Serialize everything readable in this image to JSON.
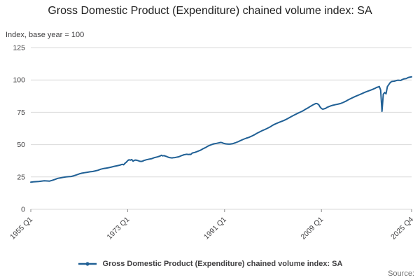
{
  "source_label": "Source:",
  "colors": {
    "line": "#206095",
    "grid": "#d9d9d9",
    "tick_text": "#414042",
    "tick_mark": "#8a8a8a",
    "title_text": "#202020",
    "source_text": "#707070"
  },
  "chart_data": {
    "type": "line",
    "title": "Gross Domestic Product (Expenditure) chained volume index: SA",
    "ylabel": "Index, base year = 100",
    "xlabel": "",
    "xlim": [
      1955,
      2025.75
    ],
    "ylim": [
      0,
      125
    ],
    "grid": "horizontal-light",
    "legend_position": "bottom-center",
    "y_ticks": [
      0,
      25,
      50,
      75,
      100,
      125
    ],
    "x_ticks": [
      {
        "label": "1955 Q1",
        "t": 1955.0
      },
      {
        "label": "1973 Q1",
        "t": 1973.0
      },
      {
        "label": "1991 Q1",
        "t": 1991.0
      },
      {
        "label": "2009 Q1",
        "t": 2009.0
      },
      {
        "label": "2025 Q4",
        "t": 2025.75
      }
    ],
    "series": [
      {
        "name": "Gross Domestic Product (Expenditure) chained volume index: SA",
        "points": [
          [
            1955,
            21
          ],
          [
            1955.5,
            21.2
          ],
          [
            1956,
            21.4
          ],
          [
            1956.5,
            21.5
          ],
          [
            1957,
            21.8
          ],
          [
            1957.5,
            22
          ],
          [
            1958,
            21.9
          ],
          [
            1958.5,
            21.8
          ],
          [
            1959,
            22.4
          ],
          [
            1959.5,
            23.1
          ],
          [
            1960,
            23.9
          ],
          [
            1960.5,
            24.3
          ],
          [
            1961,
            24.7
          ],
          [
            1961.5,
            25
          ],
          [
            1962,
            25.2
          ],
          [
            1962.5,
            25.4
          ],
          [
            1963,
            25.9
          ],
          [
            1963.5,
            26.6
          ],
          [
            1964,
            27.4
          ],
          [
            1964.5,
            27.9
          ],
          [
            1965,
            28.3
          ],
          [
            1965.5,
            28.6
          ],
          [
            1966,
            29
          ],
          [
            1966.5,
            29.2
          ],
          [
            1967,
            29.7
          ],
          [
            1967.5,
            30.2
          ],
          [
            1968,
            31
          ],
          [
            1968.5,
            31.5
          ],
          [
            1969,
            31.8
          ],
          [
            1969.5,
            32.2
          ],
          [
            1970,
            32.7
          ],
          [
            1970.5,
            33.2
          ],
          [
            1971,
            33.6
          ],
          [
            1971.5,
            34.1
          ],
          [
            1972,
            34.8
          ],
          [
            1972.25,
            34.4
          ],
          [
            1972.5,
            35.6
          ],
          [
            1972.75,
            36.4
          ],
          [
            1973,
            37.6
          ],
          [
            1973.25,
            38.3
          ],
          [
            1973.5,
            38
          ],
          [
            1973.75,
            38.5
          ],
          [
            1974,
            37.2
          ],
          [
            1974.25,
            37.9
          ],
          [
            1974.5,
            38.1
          ],
          [
            1974.75,
            37.8
          ],
          [
            1975,
            37.5
          ],
          [
            1975.25,
            37.1
          ],
          [
            1975.5,
            37
          ],
          [
            1975.75,
            37.2
          ],
          [
            1976,
            37.7
          ],
          [
            1976.5,
            38.3
          ],
          [
            1977,
            38.8
          ],
          [
            1977.5,
            39.2
          ],
          [
            1978,
            40
          ],
          [
            1978.5,
            40.5
          ],
          [
            1979,
            41.1
          ],
          [
            1979.25,
            41.8
          ],
          [
            1979.5,
            41.3
          ],
          [
            1979.75,
            41.5
          ],
          [
            1980,
            41.1
          ],
          [
            1980.25,
            40.8
          ],
          [
            1980.5,
            40.3
          ],
          [
            1980.75,
            40
          ],
          [
            1981,
            39.8
          ],
          [
            1981.25,
            39.7
          ],
          [
            1981.5,
            39.9
          ],
          [
            1981.75,
            40
          ],
          [
            1982,
            40.2
          ],
          [
            1982.5,
            40.6
          ],
          [
            1983,
            41.5
          ],
          [
            1983.5,
            42.2
          ],
          [
            1984,
            42.6
          ],
          [
            1984.25,
            42.3
          ],
          [
            1984.5,
            42.5
          ],
          [
            1984.75,
            42.4
          ],
          [
            1985,
            43.5
          ],
          [
            1985.5,
            44
          ],
          [
            1986,
            44.8
          ],
          [
            1986.5,
            45.6
          ],
          [
            1987,
            46.8
          ],
          [
            1987.5,
            47.8
          ],
          [
            1988,
            49
          ],
          [
            1988.5,
            49.9
          ],
          [
            1989,
            50.6
          ],
          [
            1989.5,
            51
          ],
          [
            1990,
            51.4
          ],
          [
            1990.25,
            51.7
          ],
          [
            1990.5,
            51.5
          ],
          [
            1990.75,
            51.1
          ],
          [
            1991,
            50.8
          ],
          [
            1991.25,
            50.6
          ],
          [
            1991.5,
            50.5
          ],
          [
            1991.75,
            50.4
          ],
          [
            1992,
            50.4
          ],
          [
            1992.5,
            50.7
          ],
          [
            1993,
            51.4
          ],
          [
            1993.5,
            52.2
          ],
          [
            1994,
            53.2
          ],
          [
            1994.5,
            54.1
          ],
          [
            1995,
            54.9
          ],
          [
            1995.5,
            55.6
          ],
          [
            1996,
            56.5
          ],
          [
            1996.5,
            57.5
          ],
          [
            1997,
            58.7
          ],
          [
            1997.5,
            59.8
          ],
          [
            1998,
            60.8
          ],
          [
            1998.5,
            61.7
          ],
          [
            1999,
            62.7
          ],
          [
            1999.5,
            63.8
          ],
          [
            2000,
            65.1
          ],
          [
            2000.5,
            66.1
          ],
          [
            2001,
            67
          ],
          [
            2001.5,
            67.8
          ],
          [
            2002,
            68.6
          ],
          [
            2002.5,
            69.6
          ],
          [
            2003,
            70.7
          ],
          [
            2003.5,
            71.9
          ],
          [
            2004,
            73
          ],
          [
            2004.5,
            74
          ],
          [
            2005,
            75
          ],
          [
            2005.5,
            76
          ],
          [
            2006,
            77.2
          ],
          [
            2006.5,
            78.4
          ],
          [
            2007,
            79.7
          ],
          [
            2007.5,
            80.9
          ],
          [
            2007.75,
            81.4
          ],
          [
            2008,
            81.8
          ],
          [
            2008.25,
            81.6
          ],
          [
            2008.5,
            80.8
          ],
          [
            2008.75,
            79.1
          ],
          [
            2009,
            77.9
          ],
          [
            2009.25,
            77.4
          ],
          [
            2009.5,
            77.7
          ],
          [
            2009.75,
            78
          ],
          [
            2010,
            78.7
          ],
          [
            2010.5,
            79.6
          ],
          [
            2011,
            80.3
          ],
          [
            2011.5,
            80.8
          ],
          [
            2012,
            81.2
          ],
          [
            2012.5,
            81.7
          ],
          [
            2013,
            82.5
          ],
          [
            2013.5,
            83.5
          ],
          [
            2014,
            84.7
          ],
          [
            2014.5,
            85.7
          ],
          [
            2015,
            86.7
          ],
          [
            2015.5,
            87.6
          ],
          [
            2016,
            88.5
          ],
          [
            2016.5,
            89.4
          ],
          [
            2017,
            90.3
          ],
          [
            2017.5,
            91.1
          ],
          [
            2018,
            91.9
          ],
          [
            2018.5,
            92.7
          ],
          [
            2019,
            93.6
          ],
          [
            2019.25,
            94.2
          ],
          [
            2019.5,
            94.5
          ],
          [
            2019.75,
            94.9
          ],
          [
            2020,
            92.1
          ],
          [
            2020.25,
            75.7
          ],
          [
            2020.5,
            89
          ],
          [
            2020.75,
            90.3
          ],
          [
            2021,
            89.3
          ],
          [
            2021.25,
            94.8
          ],
          [
            2021.5,
            96.3
          ],
          [
            2021.75,
            97.8
          ],
          [
            2022,
            98.7
          ],
          [
            2022.25,
            98.9
          ],
          [
            2022.5,
            99
          ],
          [
            2022.75,
            99.3
          ],
          [
            2023,
            99.6
          ],
          [
            2023.25,
            99.8
          ],
          [
            2023.5,
            99.7
          ],
          [
            2023.75,
            99.6
          ],
          [
            2024,
            100.2
          ],
          [
            2024.25,
            100.7
          ],
          [
            2024.5,
            100.9
          ],
          [
            2024.75,
            101.1
          ],
          [
            2025,
            101.6
          ],
          [
            2025.25,
            102
          ],
          [
            2025.5,
            102.2
          ],
          [
            2025.75,
            102.4
          ]
        ]
      }
    ]
  }
}
